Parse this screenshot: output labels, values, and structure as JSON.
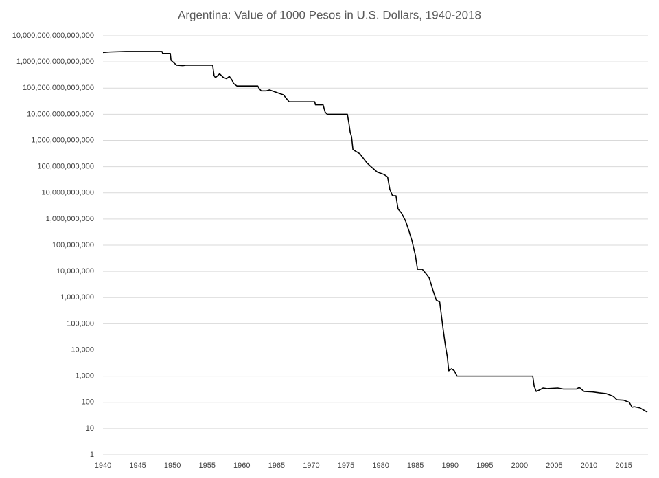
{
  "chart_data": {
    "type": "line",
    "title": "Argentina: Value of 1000 Pesos in U.S. Dollars, 1940-2018",
    "x": [
      1940,
      1941,
      1943.3,
      1948.5,
      1948.6,
      1949.7,
      1949.8,
      1950.6,
      1951.5,
      1952,
      1955.8,
      1956,
      1956.2,
      1956.8,
      1957.3,
      1957.8,
      1958.2,
      1958.6,
      1958.8,
      1959.3,
      1962.3,
      1962.5,
      1962.8,
      1963.5,
      1964,
      1965,
      1966,
      1966.8,
      1967.2,
      1970.5,
      1970.6,
      1971.7,
      1972,
      1972.3,
      1975.2,
      1975.4,
      1975.6,
      1975.8,
      1976,
      1976.3,
      1977,
      1978,
      1978.6,
      1979.5,
      1980.5,
      1981,
      1981.3,
      1981.7,
      1982.2,
      1982.5,
      1983,
      1983.6,
      1984,
      1984.5,
      1985,
      1985.3,
      1986,
      1986.6,
      1987,
      1987.5,
      1988,
      1988.5,
      1989,
      1989.3,
      1989.6,
      1989.8,
      1990.2,
      1990.6,
      1991,
      2001.9,
      2002.1,
      2002.4,
      2002.8,
      2003.4,
      2004,
      2005.5,
      2006.3,
      2008.2,
      2008.6,
      2009.3,
      2010.5,
      2011.5,
      2012.5,
      2013.5,
      2014,
      2015,
      2015.8,
      2016.2,
      2016.5,
      2017.3,
      2017.9,
      2018.4
    ],
    "values": [
      2300000000000000.0,
      2400000000000000.0,
      2500000000000000.0,
      2500000000000000.0,
      2100000000000000.0,
      2100000000000000.0,
      1150000000000000.0,
      750000000000000.0,
      720000000000000.0,
      750000000000000.0,
      750000000000000.0,
      300000000000000.0,
      250000000000000.0,
      350000000000000.0,
      260000000000000.0,
      230000000000000.0,
      280000000000000.0,
      200000000000000.0,
      150000000000000.0,
      120000000000000.0,
      120000000000000.0,
      96000000000000.0,
      78000000000000.0,
      78000000000000.0,
      85000000000000.0,
      68000000000000.0,
      55000000000000.0,
      30000000000000.0,
      30000000000000.0,
      30000000000000.0,
      23000000000000.0,
      23000000000000.0,
      12000000000000.0,
      10000000000000.0,
      10000000000000.0,
      4900000000000.0,
      2100000000000.0,
      1400000000000.0,
      450000000000.0,
      400000000000.0,
      310000000000.0,
      140000000000.0,
      100000000000.0,
      62000000000.0,
      50000000000.0,
      40000000000.0,
      14000000000.0,
      7700000000.0,
      7700000000.0,
      2400000000.0,
      1700000000.0,
      820000000.0,
      400000000.0,
      150000000.0,
      40000000.0,
      12000000.0,
      12000000.0,
      7700000.0,
      5500000.0,
      2000000.0,
      800000.0,
      670000.0,
      60000.0,
      16000.0,
      5300,
      1600,
      1900,
      1600,
      1000,
      1000,
      420,
      260,
      290,
      350,
      330,
      350,
      320,
      320,
      370,
      260,
      250,
      230,
      215,
      170,
      125,
      120,
      100,
      65,
      68,
      62,
      50,
      42
    ],
    "color": "#000000",
    "xlim": [
      1940,
      2018.5
    ],
    "xticks": [
      1940,
      1945,
      1950,
      1955,
      1960,
      1965,
      1970,
      1975,
      1980,
      1985,
      1990,
      1995,
      2000,
      2005,
      2010,
      2015
    ],
    "ylim": [
      1,
      10000000000000000
    ],
    "log_scale": true,
    "grid": true,
    "yticks": [
      1,
      10,
      100,
      {
        "value": 1000,
        "label": "1,000"
      },
      {
        "value": 10000,
        "label": "10,000"
      },
      {
        "value": 100000,
        "label": "100,000"
      },
      {
        "value": 1000000,
        "label": "1,000,000"
      },
      {
        "value": 10000000,
        "label": "10,000,000"
      },
      {
        "value": 100000000,
        "label": "100,000,000"
      },
      {
        "value": 1000000000,
        "label": "1,000,000,000"
      },
      {
        "value": 10000000000,
        "label": "10,000,000,000"
      },
      {
        "value": 100000000000,
        "label": "100,000,000,000"
      },
      {
        "value": 1000000000000,
        "label": "1,000,000,000,000"
      },
      {
        "value": 10000000000000,
        "label": "10,000,000,000,000"
      },
      {
        "value": 100000000000000,
        "label": "100,000,000,000,000"
      },
      {
        "value": 1000000000000000,
        "label": "1,000,000,000,000,000"
      },
      {
        "value": 10000000000000000,
        "label": "10,000,000,000,000,000"
      }
    ]
  }
}
